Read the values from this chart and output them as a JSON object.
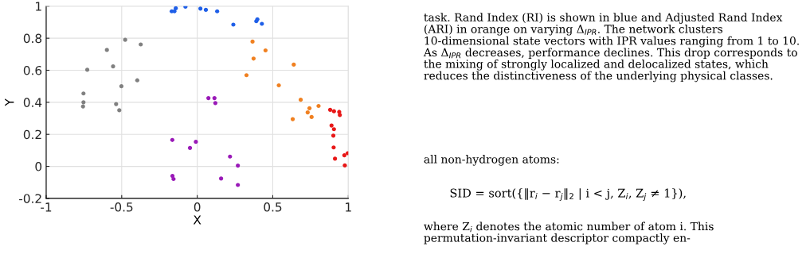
{
  "chart_data": {
    "type": "scatter",
    "xlabel": "X",
    "ylabel": "Y",
    "xlim": [
      -1,
      1
    ],
    "xticks": [
      -1,
      -0.5,
      0,
      0.5,
      1
    ],
    "ylim": [
      -0.2,
      1
    ],
    "yticks": [
      -0.2,
      0,
      0.2,
      0.4,
      0.6,
      0.8,
      1
    ],
    "grid": true,
    "marker": "circle",
    "series": [
      {
        "color": "#808080",
        "x": [
          -0.477,
          -0.374,
          -0.598,
          -0.728,
          -0.557,
          -0.397,
          -0.502,
          -0.753,
          -0.753,
          -0.756,
          -0.537,
          -0.516
        ],
        "values": [
          0.79,
          0.761,
          0.727,
          0.603,
          0.624,
          0.537,
          0.5,
          0.455,
          0.4,
          0.374,
          0.389,
          0.35
        ]
      },
      {
        "color": "#9a1ab8",
        "x": [
          -0.165,
          -0.009,
          -0.048,
          -0.164,
          -0.157,
          0.074,
          0.114,
          0.12,
          0.217,
          0.269,
          0.158,
          0.269
        ],
        "values": [
          0.165,
          0.153,
          0.115,
          -0.06,
          -0.079,
          0.426,
          0.426,
          0.395,
          0.061,
          0.005,
          -0.076,
          -0.116
        ]
      },
      {
        "color": "#1f5fe8",
        "x": [
          -0.169,
          -0.151,
          -0.142,
          -0.078,
          0.021,
          0.057,
          0.132,
          0.239,
          0.391,
          0.398,
          0.428
        ],
        "values": [
          0.968,
          0.968,
          0.987,
          0.997,
          0.985,
          0.977,
          0.968,
          0.885,
          0.906,
          0.918,
          0.89
        ]
      },
      {
        "color": "#f08020",
        "x": [
          0.366,
          0.452,
          0.373,
          0.639,
          0.326,
          0.54,
          0.685,
          0.803,
          0.743,
          0.731,
          0.757,
          0.632
        ],
        "values": [
          0.779,
          0.724,
          0.673,
          0.635,
          0.569,
          0.506,
          0.416,
          0.377,
          0.363,
          0.337,
          0.308,
          0.295
        ]
      },
      {
        "color": "#e81818",
        "x": [
          0.88,
          0.905,
          0.94,
          0.944,
          0.889,
          0.905,
          0.901,
          0.903,
          0.912,
          0.974,
          0.996,
          0.977
        ],
        "values": [
          0.353,
          0.344,
          0.34,
          0.321,
          0.255,
          0.232,
          0.192,
          0.118,
          0.048,
          0.069,
          0.082,
          0.006
        ]
      }
    ],
    "annotations": [
      "task. Rand Index (RI) is shown in blue and Adjusted Rand Index (ARI) in orange on varying Δ$_{IPR}$. The network clusters 10-dimensional state vectors with IPR values ranging from 1 to 10. As Δ$_{IPR}$ decreases, performance declines. This drop corresponds to the mixing of strongly localized and delocalized states, which reduces the distinctiveness of the underlying physical classes.",
      "all non-hydrogen atoms:",
      "SID = sort({‖r$_{i}$ − r$_{j}$‖$_{2}$ | i < j, Z$_{i}$, Z$_{j}$ ≠ 1}),",
      "where Z$_{i}$ denotes the atomic number of atom i. This permutation-invariant descriptor compactly en-"
    ]
  }
}
